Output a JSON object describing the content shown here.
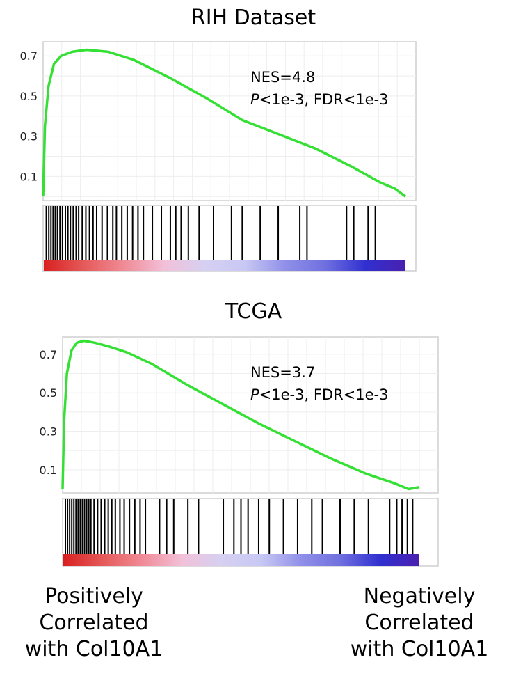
{
  "chart_data": [
    {
      "type": "line",
      "title": "RIH Dataset",
      "yticks": [
        "0.7",
        "0.5",
        "0.3",
        "0.1"
      ],
      "ylim": [
        -0.02,
        0.77
      ],
      "xlim": [
        0,
        1
      ],
      "grid": true,
      "annotation": [
        "NES=4.8",
        "P<1e-3, FDR<1e-3"
      ],
      "annotation_parts": [
        [
          "",
          "NES=4.8"
        ],
        [
          "P",
          "<1e-3, FDR<1e-3"
        ]
      ],
      "series": [
        {
          "color": "#33e033",
          "x": [
            0,
            0.005,
            0.015,
            0.03,
            0.05,
            0.08,
            0.12,
            0.18,
            0.25,
            0.35,
            0.45,
            0.55,
            0.65,
            0.75,
            0.85,
            0.93,
            0.97,
            1.0
          ],
          "y": [
            0.0,
            0.35,
            0.55,
            0.66,
            0.7,
            0.72,
            0.73,
            0.72,
            0.68,
            0.59,
            0.49,
            0.38,
            0.31,
            0.24,
            0.15,
            0.07,
            0.04,
            0.0
          ]
        }
      ],
      "hits": [
        0.005,
        0.012,
        0.018,
        0.024,
        0.03,
        0.036,
        0.043,
        0.05,
        0.058,
        0.065,
        0.072,
        0.08,
        0.088,
        0.095,
        0.105,
        0.115,
        0.125,
        0.135,
        0.145,
        0.16,
        0.175,
        0.19,
        0.2,
        0.215,
        0.23,
        0.245,
        0.26,
        0.275,
        0.3,
        0.325,
        0.35,
        0.365,
        0.38,
        0.4,
        0.43,
        0.47,
        0.52,
        0.55,
        0.6,
        0.65,
        0.71,
        0.73,
        0.84,
        0.86,
        0.9,
        0.92
      ],
      "colorbar": [
        "#d92020",
        "#e55a5a",
        "#f08b96",
        "#f2c0d8",
        "#d6d0f2",
        "#c8c8f4",
        "#9090e8",
        "#7070e0",
        "#3030d0",
        "#4a20b0"
      ]
    },
    {
      "type": "line",
      "title": "TCGA",
      "yticks": [
        "0.7",
        "0.5",
        "0.3",
        "0.1"
      ],
      "ylim": [
        -0.02,
        0.79
      ],
      "xlim": [
        0,
        1
      ],
      "grid": true,
      "annotation": [
        "NES=3.7",
        "P<1e-3, FDR<1e-3"
      ],
      "annotation_parts": [
        [
          "",
          "NES=3.7"
        ],
        [
          "P",
          "<1e-3, FDR<1e-3"
        ]
      ],
      "series": [
        {
          "color": "#33e033",
          "x": [
            0,
            0.004,
            0.012,
            0.025,
            0.04,
            0.06,
            0.09,
            0.13,
            0.18,
            0.25,
            0.35,
            0.45,
            0.55,
            0.65,
            0.75,
            0.85,
            0.93,
            0.97,
            1.0
          ],
          "y": [
            0.0,
            0.35,
            0.6,
            0.72,
            0.76,
            0.77,
            0.76,
            0.74,
            0.71,
            0.65,
            0.54,
            0.44,
            0.34,
            0.25,
            0.16,
            0.08,
            0.03,
            0.0,
            0.01
          ]
        }
      ],
      "hits": [
        0.004,
        0.01,
        0.016,
        0.022,
        0.028,
        0.034,
        0.04,
        0.046,
        0.052,
        0.058,
        0.064,
        0.07,
        0.076,
        0.085,
        0.095,
        0.105,
        0.115,
        0.125,
        0.135,
        0.145,
        0.158,
        0.17,
        0.185,
        0.2,
        0.215,
        0.23,
        0.27,
        0.29,
        0.31,
        0.35,
        0.38,
        0.45,
        0.48,
        0.5,
        0.52,
        0.55,
        0.58,
        0.62,
        0.66,
        0.7,
        0.73,
        0.78,
        0.82,
        0.86,
        0.92,
        0.94,
        0.955,
        0.97,
        0.985
      ],
      "colorbar": [
        "#d92020",
        "#e55a5a",
        "#f08b96",
        "#f2c0d8",
        "#d6d0f2",
        "#c8c8f4",
        "#9090e8",
        "#7070e0",
        "#3030d0",
        "#4a20b0"
      ]
    }
  ],
  "labels": {
    "left": [
      "Positively",
      "Correlated",
      "with Col10A1"
    ],
    "right": [
      "Negatively",
      "Correlated",
      "with Col10A1"
    ]
  }
}
